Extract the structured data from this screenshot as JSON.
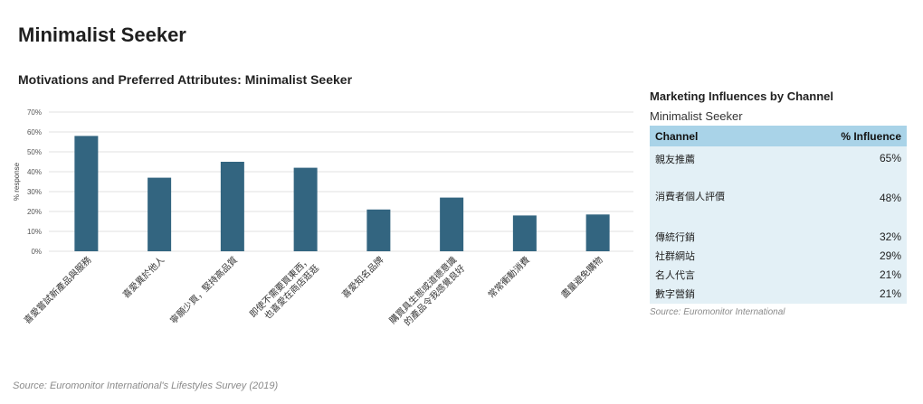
{
  "page_title": "Minimalist Seeker",
  "chart_data": {
    "type": "bar",
    "title": "Motivations and Preferred Attributes: Minimalist Seeker",
    "ylabel": "% response",
    "ylim": [
      0,
      70
    ],
    "yticks": [
      "0%",
      "10%",
      "20%",
      "30%",
      "40%",
      "50%",
      "60%",
      "70%"
    ],
    "categories": [
      "喜愛嘗試新產品與服務",
      "喜愛異於他人",
      "寧願少買，堅持高品質",
      "即使不需要買東西，也喜愛在商店逛逛",
      "喜愛知名品牌",
      "購買具生態或道德意識的產品令我感覺良好",
      "常常衝動消費",
      "盡量避免購物"
    ],
    "values": [
      58,
      37,
      45,
      42,
      21,
      27,
      18,
      18.5
    ],
    "bar_color": "#336580",
    "grid": true
  },
  "influence_table": {
    "title": "Marketing Influences by Channel",
    "subtitle": "Minimalist Seeker",
    "headers": [
      "Channel",
      "% Influence"
    ],
    "rows": [
      {
        "channel": "親友推薦",
        "value": "65%"
      },
      {
        "channel": "消費者個人評價",
        "value": "48%"
      },
      {
        "channel": "傳統行銷",
        "value": "32%"
      },
      {
        "channel": "社群網站",
        "value": "29%"
      },
      {
        "channel": "名人代言",
        "value": "21%"
      },
      {
        "channel": "數字營銷",
        "value": "21%"
      }
    ],
    "header_color": "#a9d3e8",
    "row_color": "#e3f0f6",
    "source": "Source: Euromonitor International"
  },
  "source": "Source: Euromonitor International's Lifestyles Survey (2019)"
}
